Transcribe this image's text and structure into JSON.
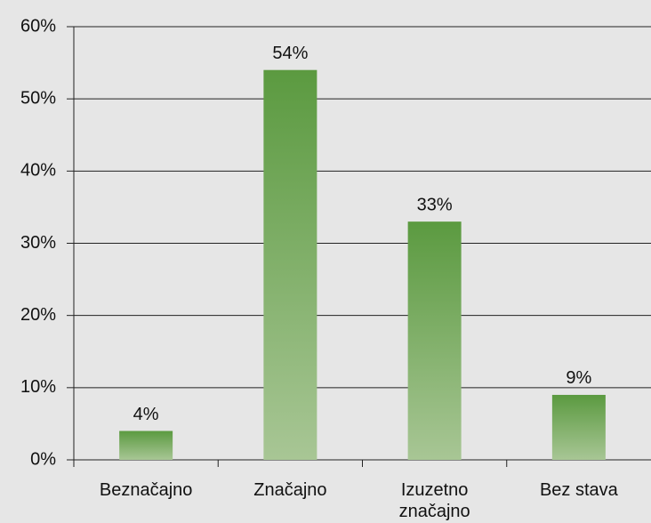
{
  "chart_data": {
    "type": "bar",
    "categories": [
      "Beznačajno",
      "Značajno",
      "Izuzetno značajno",
      "Bez stava"
    ],
    "values": [
      4,
      54,
      33,
      9
    ],
    "value_labels": [
      "4%",
      "54%",
      "33%",
      "9%"
    ],
    "color": "#5b9a40",
    "ylim": [
      0,
      60
    ],
    "yticks": [
      {
        "value": 0,
        "label": "0%"
      },
      {
        "value": 10,
        "label": "10%"
      },
      {
        "value": 20,
        "label": "20%"
      },
      {
        "value": 30,
        "label": "30%"
      },
      {
        "value": 40,
        "label": "40%"
      },
      {
        "value": 50,
        "label": "50%"
      },
      {
        "value": 60,
        "label": "60%"
      }
    ],
    "grid": true
  }
}
